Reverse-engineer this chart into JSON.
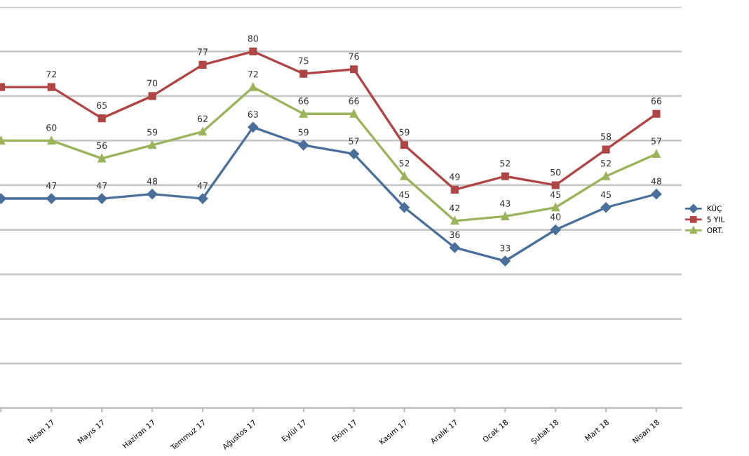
{
  "chart_data": {
    "type": "line",
    "categories": [
      null,
      "Nisan 17",
      "Mayıs 17",
      "Haziran 17",
      "Temmuz 17",
      "Ağustos 17",
      "Eylül 17",
      "Ekim 17",
      "Kasım 17",
      "Aralık 17",
      "Ocak 18",
      "Şubat 18",
      "Mart 18",
      "Nisan 18"
    ],
    "series": [
      {
        "name": "KÜÇ",
        "color": "#4a6f9b",
        "marker": "diamond",
        "values": [
          47,
          47,
          47,
          48,
          47,
          63,
          59,
          57,
          45,
          36,
          33,
          40,
          45,
          48
        ],
        "value_labels": [
          null,
          "47",
          "47",
          "48",
          "47",
          "63",
          "59",
          "57",
          "45",
          "36",
          "33",
          "40",
          "45",
          "48"
        ]
      },
      {
        "name": "5 YIL",
        "color": "#b04545",
        "marker": "square",
        "values": [
          72,
          72,
          65,
          70,
          77,
          80,
          75,
          76,
          59,
          49,
          52,
          50,
          58,
          66
        ],
        "value_labels": [
          null,
          "72",
          "65",
          "70",
          "77",
          "80",
          "75",
          "76",
          "59",
          "49",
          "52",
          "50",
          "58",
          "66"
        ]
      },
      {
        "name": "ORT.",
        "color": "#9bb35a",
        "marker": "triangle",
        "values": [
          60,
          60,
          56,
          59,
          62,
          72,
          66,
          66,
          52,
          42,
          43,
          45,
          52,
          57
        ],
        "value_labels": [
          null,
          "60",
          "56",
          "59",
          "62",
          "72",
          "66",
          "66",
          "52",
          "42",
          "43",
          "45",
          "52",
          "57"
        ]
      }
    ],
    "ylim": [
      0,
      90
    ],
    "yticks": [
      {
        "value": 0,
        "label": null
      },
      {
        "value": 10,
        "label": null
      },
      {
        "value": 20,
        "label": null
      },
      {
        "value": 30,
        "label": null
      },
      {
        "value": 40,
        "label": null
      },
      {
        "value": 50,
        "label": null
      },
      {
        "value": 60,
        "label": null
      },
      {
        "value": 70,
        "label": null
      },
      {
        "value": 80,
        "label": null
      },
      {
        "value": 90,
        "label": null
      }
    ],
    "grid": "y",
    "legend": "right",
    "tick_labels": "x",
    "line_style": "solid"
  }
}
